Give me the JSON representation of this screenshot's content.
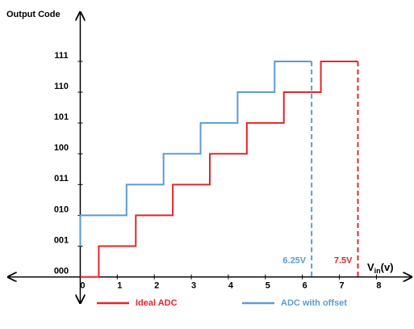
{
  "chart_data": {
    "type": "step",
    "y_label": "Output Code",
    "x_label": {
      "main": "V",
      "sub": "in",
      "unit": "(v)"
    },
    "xlim": [
      -1.95,
      8.95
    ],
    "ylim": [
      -0.85,
      8.6
    ],
    "xticks": [
      0,
      1,
      2,
      3,
      4,
      5,
      6,
      7,
      8
    ],
    "yticks": [
      {
        "value": 0,
        "label": "000"
      },
      {
        "value": 1,
        "label": "001"
      },
      {
        "value": 2,
        "label": "010"
      },
      {
        "value": 3,
        "label": "011"
      },
      {
        "value": 4,
        "label": "100"
      },
      {
        "value": 5,
        "label": "101"
      },
      {
        "value": 6,
        "label": "110"
      },
      {
        "value": 7,
        "label": "111"
      }
    ],
    "series": [
      {
        "name": "Ideal ADC",
        "color": "#e8232a",
        "x": [
          0,
          0.5,
          1.5,
          2.5,
          3.5,
          4.5,
          5.5,
          6.5,
          7.5
        ],
        "values": [
          0,
          1,
          2,
          3,
          4,
          5,
          6,
          7,
          7
        ],
        "end_label": "7.5V"
      },
      {
        "name": "ADC with offset",
        "color": "#5b9bd5",
        "x": [
          0,
          0,
          1.25,
          2.25,
          3.25,
          4.25,
          5.25,
          6.25
        ],
        "values": [
          1,
          2,
          3,
          4,
          5,
          6,
          7,
          7
        ],
        "end_label": "6.25V"
      }
    ]
  }
}
